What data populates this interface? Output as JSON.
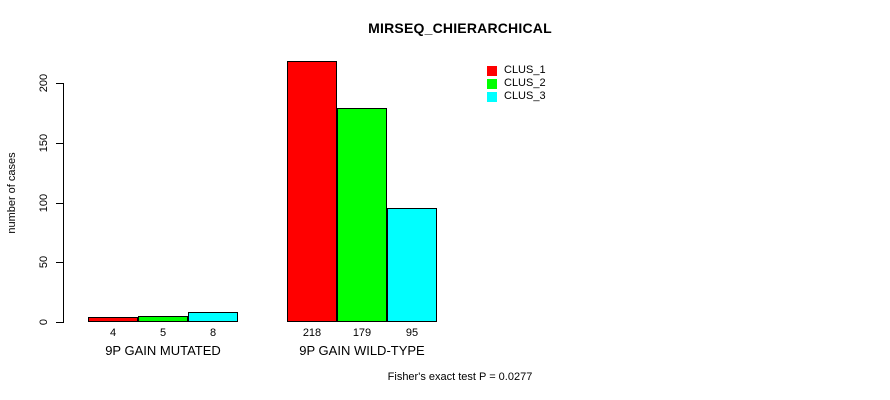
{
  "chart_data": {
    "type": "bar",
    "title": "MIRSEQ_CHIERARCHICAL",
    "ylabel": "number of cases",
    "xlabel": "",
    "categories": [
      "9P GAIN MUTATED",
      "9P GAIN WILD-TYPE"
    ],
    "series": [
      {
        "name": "CLUS_1",
        "color": "#FF0000",
        "values": [
          4,
          218
        ]
      },
      {
        "name": "CLUS_2",
        "color": "#00FF00",
        "values": [
          5,
          179
        ]
      },
      {
        "name": "CLUS_3",
        "color": "#00FFFF",
        "values": [
          8,
          95
        ]
      }
    ],
    "bar_value_labels": [
      [
        "4",
        "5",
        "8"
      ],
      [
        "218",
        "179",
        "95"
      ]
    ],
    "ylim": [
      0,
      200
    ],
    "yticks": [
      0,
      50,
      100,
      150,
      200
    ],
    "grid": false,
    "legend_position": "top-right-inside",
    "annotation": "Fisher's exact test P = 0.0277"
  },
  "colors": {
    "axis": "#000000",
    "text": "#000000",
    "background": "#FFFFFF"
  }
}
